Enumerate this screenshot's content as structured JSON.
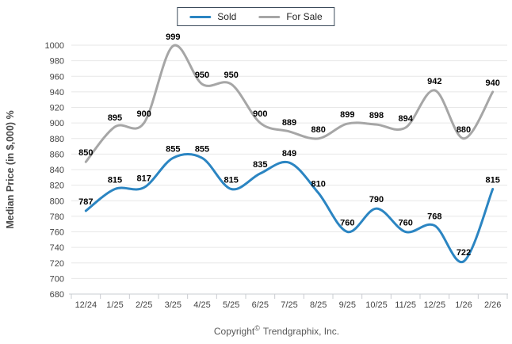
{
  "footer": {
    "prefix": "Copyright",
    "symbol": "©",
    "suffix": "Trendgraphix, Inc."
  },
  "colors": {
    "sold_line": "#2b85c2",
    "forsale_line": "#a6a6a6",
    "grid": "#e7e7e7",
    "axis": "#c9ccd1",
    "tick_label": "#444444",
    "data_label": "#000000",
    "legend_border": "#3b4a5a"
  },
  "chart_data": {
    "type": "line",
    "smooth": true,
    "title": "",
    "xlabel": "",
    "ylabel": "Median Price (in $,000) %",
    "grid": true,
    "legend_position": "top",
    "ylim": [
      680,
      1000
    ],
    "ytick_step": 20,
    "yticks": [
      680,
      700,
      720,
      740,
      760,
      780,
      800,
      820,
      840,
      860,
      880,
      900,
      920,
      940,
      960,
      980,
      1000
    ],
    "categories": [
      "12/24",
      "1/25",
      "2/25",
      "3/25",
      "4/25",
      "5/25",
      "6/25",
      "7/25",
      "8/25",
      "9/25",
      "10/25",
      "11/25",
      "12/25",
      "1/26",
      "2/26"
    ],
    "series": [
      {
        "name": "Sold",
        "color": "#2b85c2",
        "values": [
          787,
          815,
          817,
          855,
          855,
          815,
          835,
          849,
          810,
          760,
          790,
          760,
          768,
          722,
          815
        ]
      },
      {
        "name": "For Sale",
        "color": "#a6a6a6",
        "values": [
          850,
          895,
          900,
          999,
          950,
          950,
          900,
          889,
          880,
          899,
          898,
          894,
          942,
          880,
          940
        ]
      }
    ]
  }
}
